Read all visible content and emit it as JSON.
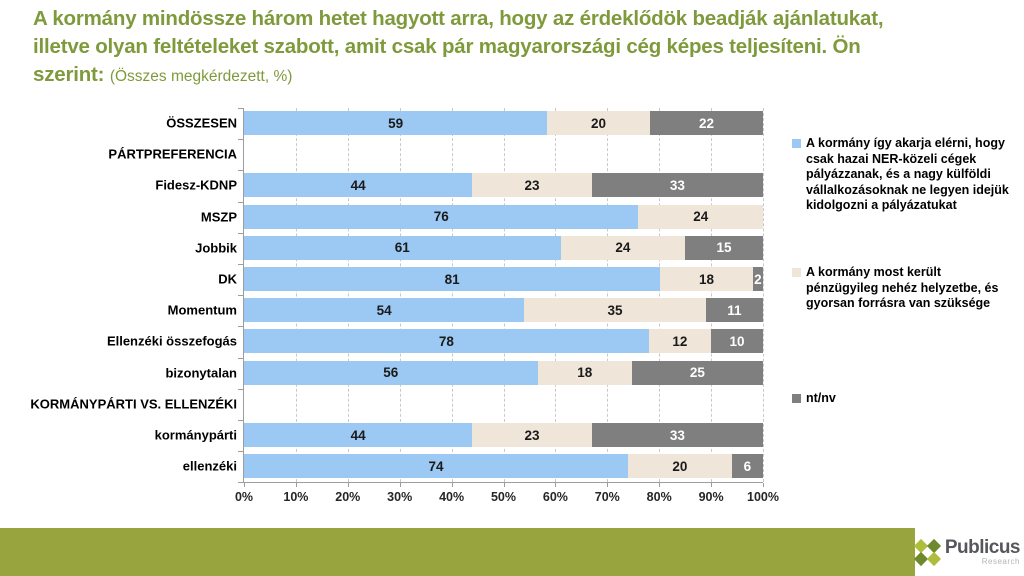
{
  "title": {
    "lines": [
      "A kormány mindössze három hetet hagyott arra, hogy az érdeklődök beadják ajánlatukat,",
      "illetve olyan feltételeket szabott, amit csak pár magyarországi cég képes teljesíteni. Ön",
      "szerint:"
    ],
    "suffix": "(Összes megkérdezett, %)"
  },
  "colors": {
    "title_green": "#7f9a3c",
    "footer_green": "#98a43d",
    "bar_blue": "#9cc9f3",
    "bar_beige": "#efe5d8",
    "bar_gray": "#7f7f7f",
    "segment_label_dark": "#1a1a1a",
    "segment_label_light": "#ffffff",
    "axis_gray": "#9d9d9d",
    "grid_gray": "#c9c9c9",
    "brand_text": "#55575b",
    "brand_sub_text": "#b3b5b7",
    "logo_diamond_light": "#aebe3c",
    "logo_diamond_dark": "#6e882c"
  },
  "chart_data": {
    "type": "bar",
    "orientation": "horizontal",
    "stacked": true,
    "normalized_to_100": true,
    "grid": "dashed-vertical-10pct",
    "legend_position": "right",
    "categories": [
      "ÖSSZESEN",
      "PÁRTPREFERENCIA",
      "Fidesz-KDNP",
      "MSZP",
      "Jobbik",
      "DK",
      "Momentum",
      "Ellenzéki összefogás",
      "bizonytalan",
      "KORMÁNYPÁRTI VS. ELLENZÉKI",
      "kormánypárti",
      "ellenzéki"
    ],
    "header_row_indices": [
      1,
      9
    ],
    "series": [
      {
        "name": "A kormány így akarja elérni, hogy csak hazai NER-közeli cégek pályázzanak, és a nagy külföldi vállalkozásoknak ne legyen idejük kidolgozni a pályázatukat",
        "color": "#9cc9f3",
        "values": [
          59,
          null,
          44,
          76,
          61,
          81,
          54,
          78,
          56,
          null,
          44,
          74
        ]
      },
      {
        "name": "A kormány most került pénzügyileg nehéz helyzetbe, és gyorsan forrásra van szüksége",
        "color": "#efe5d8",
        "values": [
          20,
          null,
          23,
          24,
          24,
          18,
          35,
          12,
          18,
          null,
          23,
          20
        ]
      },
      {
        "name": "nt/nv",
        "color": "#7f7f7f",
        "values": [
          22,
          null,
          33,
          0,
          15,
          2,
          11,
          10,
          25,
          null,
          33,
          6
        ]
      }
    ],
    "x_ticks": [
      "0%",
      "10%",
      "20%",
      "30%",
      "40%",
      "50%",
      "60%",
      "70%",
      "80%",
      "90%",
      "100%"
    ],
    "xlim": [
      0,
      100
    ]
  },
  "footer": {
    "brand": "Publicus",
    "brand_sub": "Research"
  }
}
